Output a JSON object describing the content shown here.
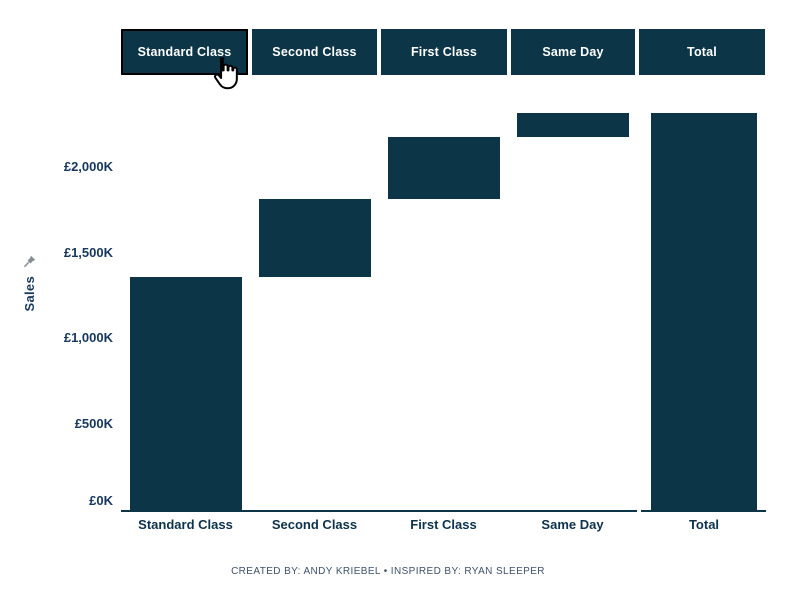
{
  "page": {
    "background": "#ffffff"
  },
  "toolbar": {
    "items": [
      {
        "label": "Standard Class",
        "selected": true,
        "hovered": true
      },
      {
        "label": "Second Class",
        "selected": false
      },
      {
        "label": "First Class",
        "selected": false
      },
      {
        "label": "Same Day",
        "selected": false
      },
      {
        "label": "Total",
        "selected": false
      }
    ],
    "fill_color": "#0c3547",
    "text_color": "#ffffff",
    "selected_border_color": "#000000"
  },
  "cursor": {
    "icon": "hand-pointer-icon"
  },
  "y_axis": {
    "label": "Sales",
    "pin_icon": "pushpin-icon",
    "tick_color": "#17375c"
  },
  "footer": {
    "credit": "CREATED BY: ANDY KRIEBEL  •  INSPIRED BY: RYAN SLEEPER"
  },
  "chart_data": {
    "type": "bar",
    "subtype": "waterfall",
    "title": "",
    "xlabel": "",
    "ylabel": "Sales",
    "categories": [
      "Standard Class",
      "Second Class",
      "First Class",
      "Same Day",
      "Total"
    ],
    "bars": [
      {
        "category": "Standard Class",
        "start_k": 0,
        "end_k": 1358,
        "pane": "waterfall"
      },
      {
        "category": "Second Class",
        "start_k": 1358,
        "end_k": 1814,
        "pane": "waterfall"
      },
      {
        "category": "First Class",
        "start_k": 1814,
        "end_k": 2174,
        "pane": "waterfall"
      },
      {
        "category": "Same Day",
        "start_k": 2174,
        "end_k": 2310,
        "pane": "waterfall"
      },
      {
        "category": "Total",
        "start_k": 0,
        "end_k": 2310,
        "pane": "total"
      }
    ],
    "segment_values_k": [
      1358,
      456,
      360,
      136
    ],
    "total_k": 2310,
    "currency": "GBP",
    "yticks": [
      {
        "value_k": 0,
        "label": "£0K"
      },
      {
        "value_k": 500,
        "label": "£500K"
      },
      {
        "value_k": 1000,
        "label": "£1,000K"
      },
      {
        "value_k": 1500,
        "label": "£1,500K"
      },
      {
        "value_k": 2000,
        "label": "£2,000K"
      }
    ],
    "ylim_k": [
      0,
      2420
    ],
    "bar_color": "#0c3547",
    "grid": false,
    "legend": false
  }
}
